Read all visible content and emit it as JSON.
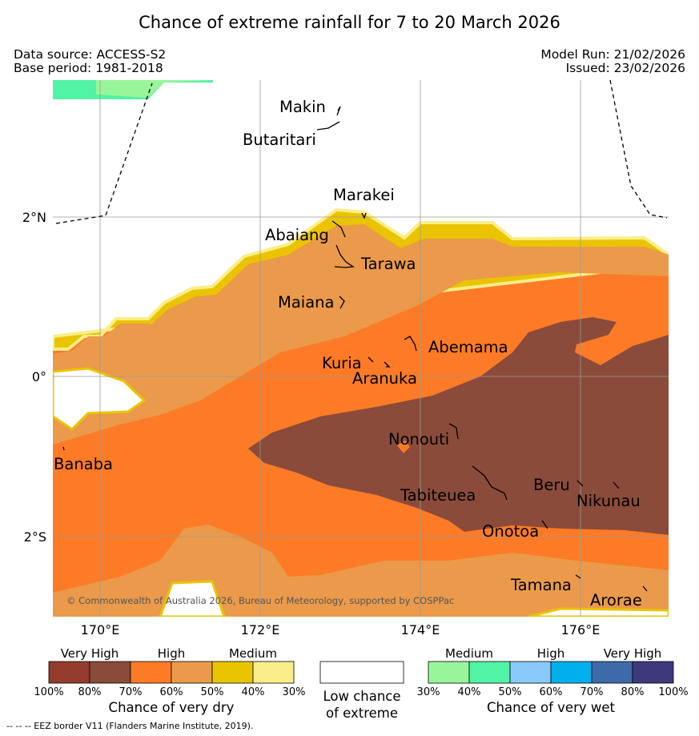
{
  "header": {
    "title": "Chance of extreme rainfall for 7 to 20 March 2026",
    "data_source": "Data source: ACCESS-S2",
    "base_period": "Base period: 1981-2018",
    "model_run": "Model Run: 21/02/2026",
    "issued": "Issued: 23/02/2026"
  },
  "map": {
    "lon_ticks": [
      "170°E",
      "172°E",
      "174°E",
      "176°E"
    ],
    "lat_ticks": [
      "2°N",
      "0°",
      "2°S"
    ],
    "islands": [
      "Makin",
      "Butaritari",
      "Marakei",
      "Abaiang",
      "Tarawa",
      "Maiana",
      "Abemama",
      "Kuria",
      "Aranuka",
      "Nonouti",
      "Banaba",
      "Tabiteuea",
      "Beru",
      "Nikunau",
      "Onotoa",
      "Tamana",
      "Arorae"
    ],
    "copyright": "© Commonwealth of Australia 2026, Bureau of Meteorology, supported by COSPPac"
  },
  "legend_dry": {
    "categories": [
      "Very High",
      "High",
      "Medium"
    ],
    "ticks": [
      "100%",
      "80%",
      "70%",
      "60%",
      "50%",
      "40%",
      "30%"
    ],
    "colors": [
      "#943d2e",
      "#8b4b3a",
      "#fd7b26",
      "#ea9a4a",
      "#e9c400",
      "#fbee88"
    ],
    "caption": "Chance of very dry"
  },
  "legend_low": {
    "caption_line1": "Low chance",
    "caption_line2": "of extreme"
  },
  "legend_wet": {
    "categories": [
      "Medium",
      "High",
      "Very High"
    ],
    "ticks": [
      "30%",
      "40%",
      "50%",
      "60%",
      "70%",
      "80%",
      "100%"
    ],
    "colors": [
      "#99f59a",
      "#51f3a4",
      "#89cafa",
      "#00b0ec",
      "#3d6aa9",
      "#3d3a7b"
    ],
    "caption": "Chance of very wet"
  },
  "footnote": "-- -- -- EEZ border V11 (Flanders Marine Institute, 2019)."
}
